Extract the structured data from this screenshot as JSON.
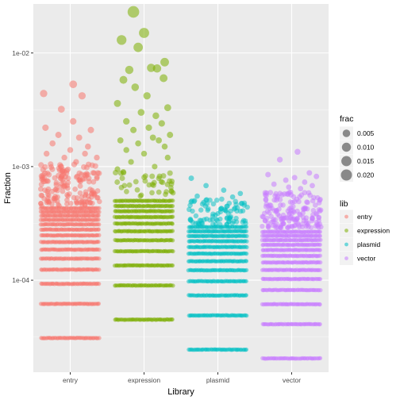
{
  "chart_data": {
    "type": "scatter",
    "subtype": "jitter",
    "title": "",
    "xlabel": "Library",
    "ylabel": "Fraction",
    "y_scale": "log10",
    "ylim": [
      1.55e-05,
      0.027
    ],
    "y_ticks": [
      {
        "value": 0.0001,
        "label": "1e-04"
      },
      {
        "value": 0.001,
        "label": "1e-03"
      },
      {
        "value": 0.01,
        "label": "1e-02"
      }
    ],
    "categories": [
      "entry",
      "expression",
      "plasmid",
      "vector"
    ],
    "grid": true,
    "legend_position": "right",
    "size_legend": {
      "title": "frac",
      "entries": [
        {
          "value": 0.005,
          "label": "0.005"
        },
        {
          "value": 0.01,
          "label": "0.010"
        },
        {
          "value": 0.015,
          "label": "0.015"
        },
        {
          "value": 0.02,
          "label": "0.020"
        }
      ]
    },
    "series": [
      {
        "name": "entry",
        "color": "#F8766D",
        "band_values": [
          3.1e-05,
          6.2e-05,
          9.3e-05,
          0.000124,
          0.000155,
          0.000186,
          0.000217,
          0.000248,
          0.000279,
          0.00031,
          0.00034,
          0.00037,
          0.0004,
          0.00043
        ],
        "cloud_range": [
          0.00045,
          0.00105
        ],
        "cloud_count": 160,
        "scattered_points": [
          {
            "value": 0.0053,
            "jitter": 0.05
          },
          {
            "value": 0.0044,
            "jitter": -0.45
          },
          {
            "value": 0.0042,
            "jitter": 0.2
          },
          {
            "value": 0.0032,
            "jitter": -0.15
          },
          {
            "value": 0.0025,
            "jitter": 0.05
          },
          {
            "value": 0.0022,
            "jitter": -0.42
          },
          {
            "value": 0.0021,
            "jitter": 0.35
          },
          {
            "value": 0.0019,
            "jitter": -0.2
          },
          {
            "value": 0.0018,
            "jitter": 0.15
          },
          {
            "value": 0.0016,
            "jitter": -0.3
          },
          {
            "value": 0.0015,
            "jitter": 0.3
          },
          {
            "value": 0.0014,
            "jitter": 0.0
          },
          {
            "value": 0.0013,
            "jitter": -0.4
          },
          {
            "value": 0.0013,
            "jitter": 0.25
          },
          {
            "value": 0.0012,
            "jitter": -0.1
          },
          {
            "value": 0.0012,
            "jitter": 0.45
          },
          {
            "value": 0.0011,
            "jitter": 0.1
          }
        ]
      },
      {
        "name": "expression",
        "color": "#7CAE00",
        "band_values": [
          4.5e-05,
          9e-05,
          0.000135,
          0.00018,
          0.000225,
          0.00027,
          0.000315,
          0.00036,
          0.000405,
          0.00045,
          0.0005
        ],
        "cloud_range": [
          0.00055,
          0.0009
        ],
        "cloud_count": 40,
        "scattered_points": [
          {
            "value": 0.023,
            "jitter": -0.18
          },
          {
            "value": 0.015,
            "jitter": 0.0
          },
          {
            "value": 0.013,
            "jitter": -0.38
          },
          {
            "value": 0.0112,
            "jitter": -0.1
          },
          {
            "value": 0.0083,
            "jitter": 0.35
          },
          {
            "value": 0.0074,
            "jitter": 0.12
          },
          {
            "value": 0.0073,
            "jitter": 0.22
          },
          {
            "value": 0.0071,
            "jitter": -0.25
          },
          {
            "value": 0.006,
            "jitter": 0.33
          },
          {
            "value": 0.0058,
            "jitter": -0.35
          },
          {
            "value": 0.005,
            "jitter": -0.15
          },
          {
            "value": 0.0042,
            "jitter": 0.05
          },
          {
            "value": 0.0036,
            "jitter": -0.45
          },
          {
            "value": 0.0033,
            "jitter": 0.4
          },
          {
            "value": 0.003,
            "jitter": -0.05
          },
          {
            "value": 0.0028,
            "jitter": 0.2
          },
          {
            "value": 0.0025,
            "jitter": -0.3
          },
          {
            "value": 0.0024,
            "jitter": 0.3
          },
          {
            "value": 0.0022,
            "jitter": 0.08
          },
          {
            "value": 0.0021,
            "jitter": -0.18
          },
          {
            "value": 0.0019,
            "jitter": 0.44
          },
          {
            "value": 0.0018,
            "jitter": 0.15
          },
          {
            "value": 0.0017,
            "jitter": -0.4
          },
          {
            "value": 0.0017,
            "jitter": 0.25
          },
          {
            "value": 0.0016,
            "jitter": -0.1
          },
          {
            "value": 0.0015,
            "jitter": 0.35
          },
          {
            "value": 0.0014,
            "jitter": -0.3
          },
          {
            "value": 0.0013,
            "jitter": 0.0
          },
          {
            "value": 0.0012,
            "jitter": 0.4
          },
          {
            "value": 0.0011,
            "jitter": -0.22
          },
          {
            "value": 0.001,
            "jitter": 0.18
          },
          {
            "value": 0.00095,
            "jitter": -0.45
          }
        ]
      },
      {
        "name": "plasmid",
        "color": "#00BFC4",
        "band_values": [
          2.45e-05,
          4.9e-05,
          7.35e-05,
          9.8e-05,
          0.0001225,
          0.000147,
          0.0001715,
          0.000196,
          0.0002205,
          0.000245,
          0.0002695,
          0.000294
        ],
        "cloud_range": [
          0.00031,
          0.00052
        ],
        "cloud_count": 90,
        "scattered_points": [
          {
            "value": 0.00079,
            "jitter": -0.45
          },
          {
            "value": 0.00068,
            "jitter": -0.2
          },
          {
            "value": 0.00062,
            "jitter": 0.1
          },
          {
            "value": 0.00058,
            "jitter": 0.38
          },
          {
            "value": 0.00055,
            "jitter": -0.35
          },
          {
            "value": 0.00054,
            "jitter": 0.25
          }
        ]
      },
      {
        "name": "vector",
        "color": "#C77CFF",
        "band_values": [
          2.05e-05,
          4.1e-05,
          6.15e-05,
          8.2e-05,
          0.0001025,
          0.000123,
          0.0001435,
          0.000164,
          0.0001845,
          0.000205,
          0.0002255,
          0.000246,
          0.0002665
        ],
        "cloud_range": [
          0.00029,
          0.0006
        ],
        "cloud_count": 170,
        "scattered_points": [
          {
            "value": 0.00135,
            "jitter": 0.1
          },
          {
            "value": 0.00115,
            "jitter": -0.2
          },
          {
            "value": 0.00088,
            "jitter": 0.3
          },
          {
            "value": 0.00085,
            "jitter": -0.4
          },
          {
            "value": 0.00082,
            "jitter": 0.42
          },
          {
            "value": 0.0008,
            "jitter": 0.05
          },
          {
            "value": 0.00076,
            "jitter": -0.1
          },
          {
            "value": 0.00073,
            "jitter": 0.22
          },
          {
            "value": 0.0007,
            "jitter": -0.3
          },
          {
            "value": 0.00068,
            "jitter": 0.35
          },
          {
            "value": 0.00066,
            "jitter": -0.05
          },
          {
            "value": 0.00064,
            "jitter": 0.15
          }
        ]
      }
    ],
    "color_legend": {
      "title": "lib"
    }
  }
}
